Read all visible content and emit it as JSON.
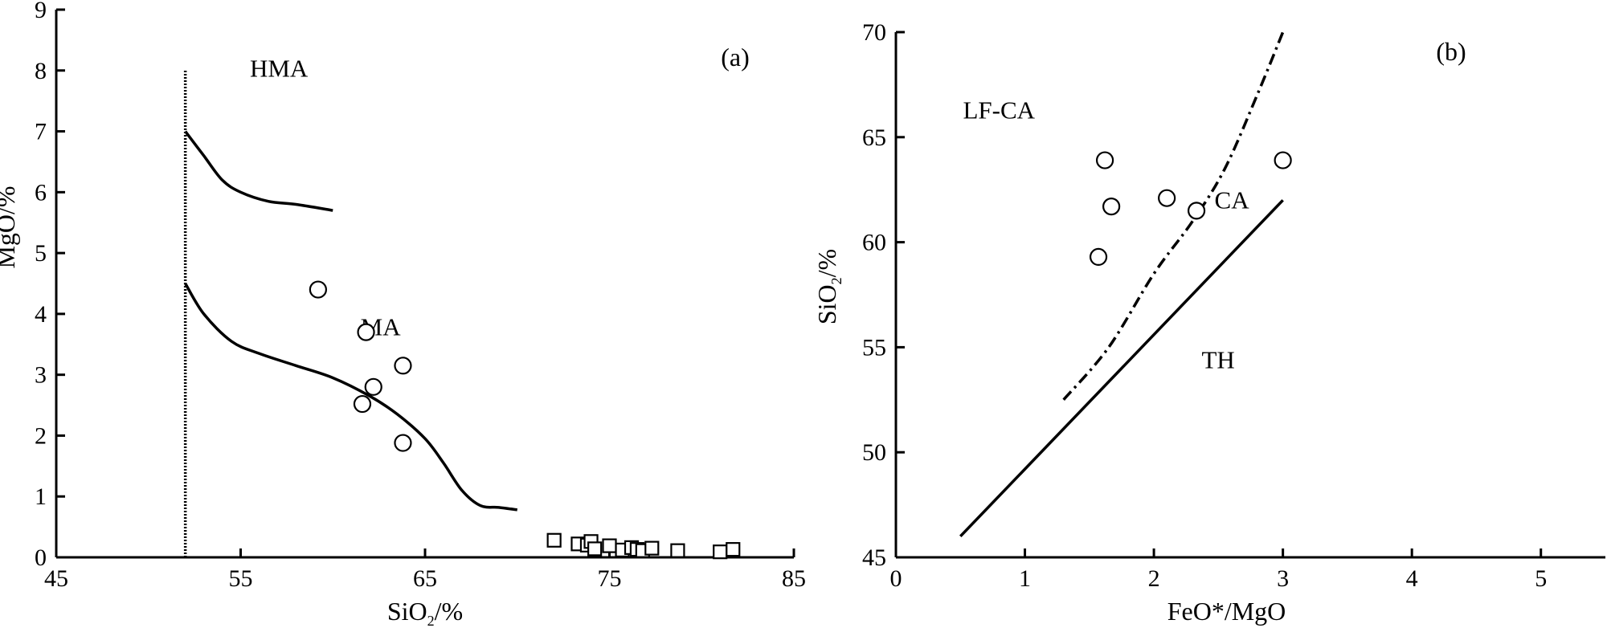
{
  "chart_data": [
    {
      "panel_label": "(a)",
      "type": "scatter",
      "xlabel": "SiO2/%",
      "xlabel_parts": [
        "SiO",
        "2",
        "/%"
      ],
      "ylabel": "MgO/%",
      "xlim": [
        45,
        85
      ],
      "ylim": [
        0,
        9
      ],
      "xticks": [
        45,
        55,
        65,
        75,
        85
      ],
      "yticks": [
        0,
        1,
        2,
        3,
        4,
        5,
        6,
        7,
        8,
        9
      ],
      "regions": [
        {
          "label": "HMA",
          "x": 55.5,
          "y": 7.9
        },
        {
          "label": "MA",
          "x": 61.5,
          "y": 3.65
        }
      ],
      "lines": [
        {
          "style": "dotted-vertical",
          "points": [
            [
              52,
              0
            ],
            [
              52,
              8
            ]
          ]
        },
        {
          "style": "solid",
          "points": [
            [
              52,
              7.0
            ],
            [
              53,
              6.6
            ],
            [
              54,
              6.2
            ],
            [
              55,
              6.0
            ],
            [
              56.5,
              5.85
            ],
            [
              58,
              5.8
            ],
            [
              60,
              5.7
            ]
          ]
        },
        {
          "style": "solid",
          "points": [
            [
              52,
              4.5
            ],
            [
              53,
              4.0
            ],
            [
              54.5,
              3.55
            ],
            [
              56,
              3.35
            ],
            [
              58,
              3.15
            ],
            [
              60,
              2.95
            ],
            [
              62,
              2.65
            ],
            [
              63.5,
              2.35
            ],
            [
              65,
              1.95
            ],
            [
              66,
              1.55
            ],
            [
              67,
              1.1
            ],
            [
              68,
              0.85
            ],
            [
              69,
              0.82
            ],
            [
              70,
              0.78
            ]
          ]
        }
      ],
      "series": [
        {
          "marker": "circle",
          "points": [
            [
              59.2,
              4.4
            ],
            [
              61.8,
              3.7
            ],
            [
              63.8,
              3.15
            ],
            [
              62.2,
              2.8
            ],
            [
              61.6,
              2.52
            ],
            [
              63.8,
              1.88
            ]
          ]
        },
        {
          "marker": "square",
          "points": [
            [
              72.0,
              0.28
            ],
            [
              73.3,
              0.22
            ],
            [
              73.8,
              0.2
            ],
            [
              74.0,
              0.26
            ],
            [
              74.2,
              0.14
            ],
            [
              75.0,
              0.19
            ],
            [
              75.7,
              0.12
            ],
            [
              76.2,
              0.16
            ],
            [
              76.5,
              0.13
            ],
            [
              76.8,
              0.11
            ],
            [
              77.3,
              0.15
            ],
            [
              78.7,
              0.11
            ],
            [
              81.0,
              0.09
            ],
            [
              81.7,
              0.13
            ]
          ]
        }
      ]
    },
    {
      "panel_label": "(b)",
      "type": "scatter",
      "xlabel": "FeO*/MgO",
      "ylabel": "SiO2/%",
      "ylabel_parts": [
        "SiO",
        "2",
        "/%"
      ],
      "xlim": [
        0,
        5.5
      ],
      "ylim": [
        45,
        70
      ],
      "xticks": [
        0,
        1,
        2,
        3,
        4,
        5
      ],
      "yticks": [
        45,
        50,
        55,
        60,
        65,
        70
      ],
      "regions": [
        {
          "label": "LF-CA",
          "x": 0.52,
          "y": 65.9
        },
        {
          "label": "CA",
          "x": 2.47,
          "y": 61.6
        },
        {
          "label": "TH",
          "x": 2.37,
          "y": 54.0
        }
      ],
      "lines": [
        {
          "style": "solid",
          "points": [
            [
              0.5,
              46.0
            ],
            [
              3.0,
              62.0
            ]
          ]
        },
        {
          "style": "dash-dot",
          "points": [
            [
              1.3,
              52.5
            ],
            [
              1.65,
              55.0
            ],
            [
              2.0,
              58.5
            ],
            [
              2.3,
              61.0
            ],
            [
              2.55,
              63.5
            ],
            [
              2.8,
              67.0
            ],
            [
              3.0,
              70.0
            ]
          ]
        }
      ],
      "series": [
        {
          "marker": "circle",
          "points": [
            [
              1.62,
              63.9
            ],
            [
              3.0,
              63.9
            ],
            [
              2.1,
              62.1
            ],
            [
              1.67,
              61.7
            ],
            [
              2.33,
              61.5
            ],
            [
              1.57,
              59.3
            ]
          ]
        }
      ]
    }
  ]
}
